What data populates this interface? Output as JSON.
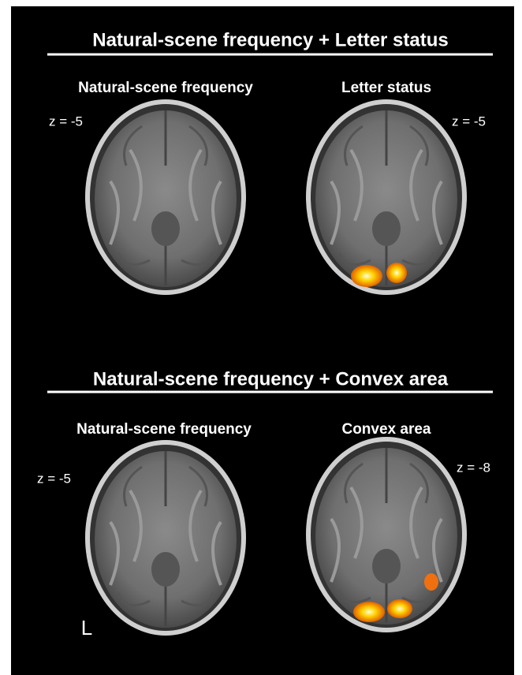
{
  "sections": [
    {
      "title": "Natural-scene frequency + Letter status",
      "panels": [
        {
          "label": "Natural-scene frequency",
          "z": "z = -5"
        },
        {
          "label": "Letter status",
          "z": "z = -5"
        }
      ]
    },
    {
      "title": "Natural-scene frequency + Convex area",
      "panels": [
        {
          "label": "Natural-scene frequency",
          "z": "z = -5"
        },
        {
          "label": "Convex area",
          "z": "z = -8"
        }
      ]
    }
  ],
  "orientation_label": "L"
}
